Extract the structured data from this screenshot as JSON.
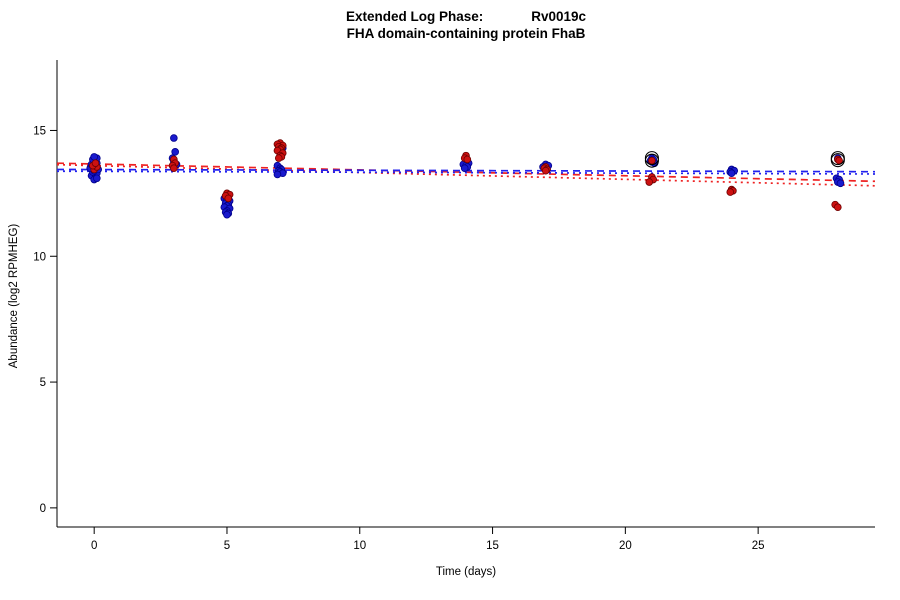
{
  "title": {
    "line1_left": "Extended Log Phase:",
    "line1_right": "Rv0019c",
    "line2": "FHA domain-containing protein FhaB"
  },
  "axes": {
    "x_label": "Time  (days)",
    "y_label": "Abundance  (log2 RPMHEG)",
    "x_ticks": [
      0,
      5,
      10,
      15,
      20,
      25
    ],
    "y_ticks": [
      0,
      5,
      10,
      15
    ],
    "x_range": [
      -1.4,
      29.4
    ],
    "y_range": [
      -0.76,
      17.8
    ]
  },
  "colors": {
    "axis": "#000000",
    "blue_point_fill": "#1a1acd",
    "blue_point_stroke": "#00008b",
    "red_point_fill": "#cc1111",
    "red_point_stroke": "#6e0000",
    "blue_line": "#2222ee",
    "red_line": "#ee2222",
    "highlight": "#000000"
  },
  "chart_data": {
    "type": "scatter",
    "title": "Extended Log Phase: Rv0019c — FHA domain-containing protein FhaB",
    "xlabel": "Time (days)",
    "ylabel": "Abundance (log2 RPMHEG)",
    "xlim": [
      -1.4,
      29.4
    ],
    "ylim": [
      -0.76,
      17.8
    ],
    "series": [
      {
        "name": "blue",
        "points": [
          [
            -0.1,
            13.2
          ],
          [
            0.05,
            13.25
          ],
          [
            0.1,
            13.3
          ],
          [
            -0.05,
            13.35
          ],
          [
            0,
            13.4
          ],
          [
            0.15,
            13.45
          ],
          [
            -0.15,
            13.5
          ],
          [
            0.05,
            13.55
          ],
          [
            0,
            13.6
          ],
          [
            -0.1,
            13.65
          ],
          [
            0.1,
            13.7
          ],
          [
            0,
            13.8
          ],
          [
            -0.05,
            13.85
          ],
          [
            0.1,
            13.9
          ],
          [
            0,
            13.95
          ],
          [
            0,
            13.05
          ],
          [
            0.1,
            13.1
          ],
          [
            3,
            14.7
          ],
          [
            3.05,
            14.15
          ],
          [
            2.95,
            13.9
          ],
          [
            3,
            13.75
          ],
          [
            3.1,
            13.65
          ],
          [
            4.9,
            12.3
          ],
          [
            5,
            12.25
          ],
          [
            5.1,
            12.2
          ],
          [
            4.95,
            12.1
          ],
          [
            5.05,
            12.05
          ],
          [
            5,
            12
          ],
          [
            4.9,
            11.95
          ],
          [
            5.1,
            11.9
          ],
          [
            5,
            11.8
          ],
          [
            4.95,
            11.75
          ],
          [
            5.05,
            11.7
          ],
          [
            5,
            11.65
          ],
          [
            7,
            14.45
          ],
          [
            7.1,
            14.3
          ],
          [
            6.9,
            13.6
          ],
          [
            7,
            13.5
          ],
          [
            7.05,
            13.45
          ],
          [
            6.95,
            13.4
          ],
          [
            7,
            13.35
          ],
          [
            7.1,
            13.3
          ],
          [
            6.9,
            13.25
          ],
          [
            14,
            13.75
          ],
          [
            14.1,
            13.7
          ],
          [
            13.9,
            13.65
          ],
          [
            14,
            13.6
          ],
          [
            14.05,
            13.55
          ],
          [
            13.95,
            13.5
          ],
          [
            17,
            13.65
          ],
          [
            17.1,
            13.6
          ],
          [
            16.9,
            13.55
          ],
          [
            17,
            13.5
          ],
          [
            17.05,
            13.45
          ],
          [
            21,
            13.9
          ],
          [
            21.05,
            13.85
          ],
          [
            20.95,
            13.8
          ],
          [
            21,
            13.75
          ],
          [
            21.1,
            13.7
          ],
          [
            24,
            13.45
          ],
          [
            24.1,
            13.4
          ],
          [
            23.95,
            13.35
          ],
          [
            24,
            13.3
          ],
          [
            28,
            13.9
          ],
          [
            27.95,
            13.1
          ],
          [
            28.05,
            13.05
          ],
          [
            28,
            12.95
          ],
          [
            28.1,
            12.9
          ]
        ]
      },
      {
        "name": "red",
        "points": [
          [
            0,
            13.45
          ],
          [
            0.1,
            13.55
          ],
          [
            -0.05,
            13.6
          ],
          [
            0.05,
            13.7
          ],
          [
            3,
            13.85
          ],
          [
            3.05,
            13.7
          ],
          [
            2.95,
            13.6
          ],
          [
            3,
            13.5
          ],
          [
            5,
            12.5
          ],
          [
            5.1,
            12.45
          ],
          [
            4.95,
            12.4
          ],
          [
            5.05,
            12.3
          ],
          [
            7,
            14.5
          ],
          [
            6.9,
            14.45
          ],
          [
            7.1,
            14.4
          ],
          [
            6.95,
            14.35
          ],
          [
            7.05,
            14.3
          ],
          [
            7,
            14.25
          ],
          [
            6.9,
            14.2
          ],
          [
            7.1,
            14.1
          ],
          [
            7,
            14
          ],
          [
            7.05,
            13.95
          ],
          [
            6.95,
            13.9
          ],
          [
            14,
            14
          ],
          [
            13.95,
            13.9
          ],
          [
            14.05,
            13.85
          ],
          [
            17,
            13.55
          ],
          [
            16.95,
            13.5
          ],
          [
            17.05,
            13.45
          ],
          [
            17,
            13.4
          ],
          [
            21,
            13.8
          ],
          [
            21,
            13.15
          ],
          [
            21.05,
            13.05
          ],
          [
            20.9,
            12.95
          ],
          [
            24,
            12.65
          ],
          [
            24.05,
            12.6
          ],
          [
            23.95,
            12.55
          ],
          [
            28,
            13.85
          ],
          [
            28.05,
            13.8
          ],
          [
            27.9,
            12.05
          ],
          [
            28,
            11.95
          ]
        ]
      }
    ],
    "trend_lines": [
      {
        "name": "red-dashed",
        "series": "red",
        "dash": "7,5",
        "x": [
          -1.4,
          29.4
        ],
        "y": [
          13.7,
          12.98
        ]
      },
      {
        "name": "red-dotted",
        "series": "red",
        "dash": "2,4",
        "x": [
          -1.4,
          29.4
        ],
        "y": [
          13.64,
          12.8
        ]
      },
      {
        "name": "blue-dashed",
        "series": "blue",
        "dash": "7,5",
        "x": [
          -1.4,
          29.4
        ],
        "y": [
          13.45,
          13.36
        ]
      },
      {
        "name": "blue-dotted",
        "series": "blue",
        "dash": "2,4",
        "x": [
          -1.4,
          29.4
        ],
        "y": [
          13.38,
          13.27
        ]
      }
    ],
    "highlighted_points": [
      [
        21,
        13.9
      ],
      [
        21,
        13.8
      ],
      [
        28,
        13.9
      ],
      [
        28,
        13.82
      ]
    ]
  }
}
